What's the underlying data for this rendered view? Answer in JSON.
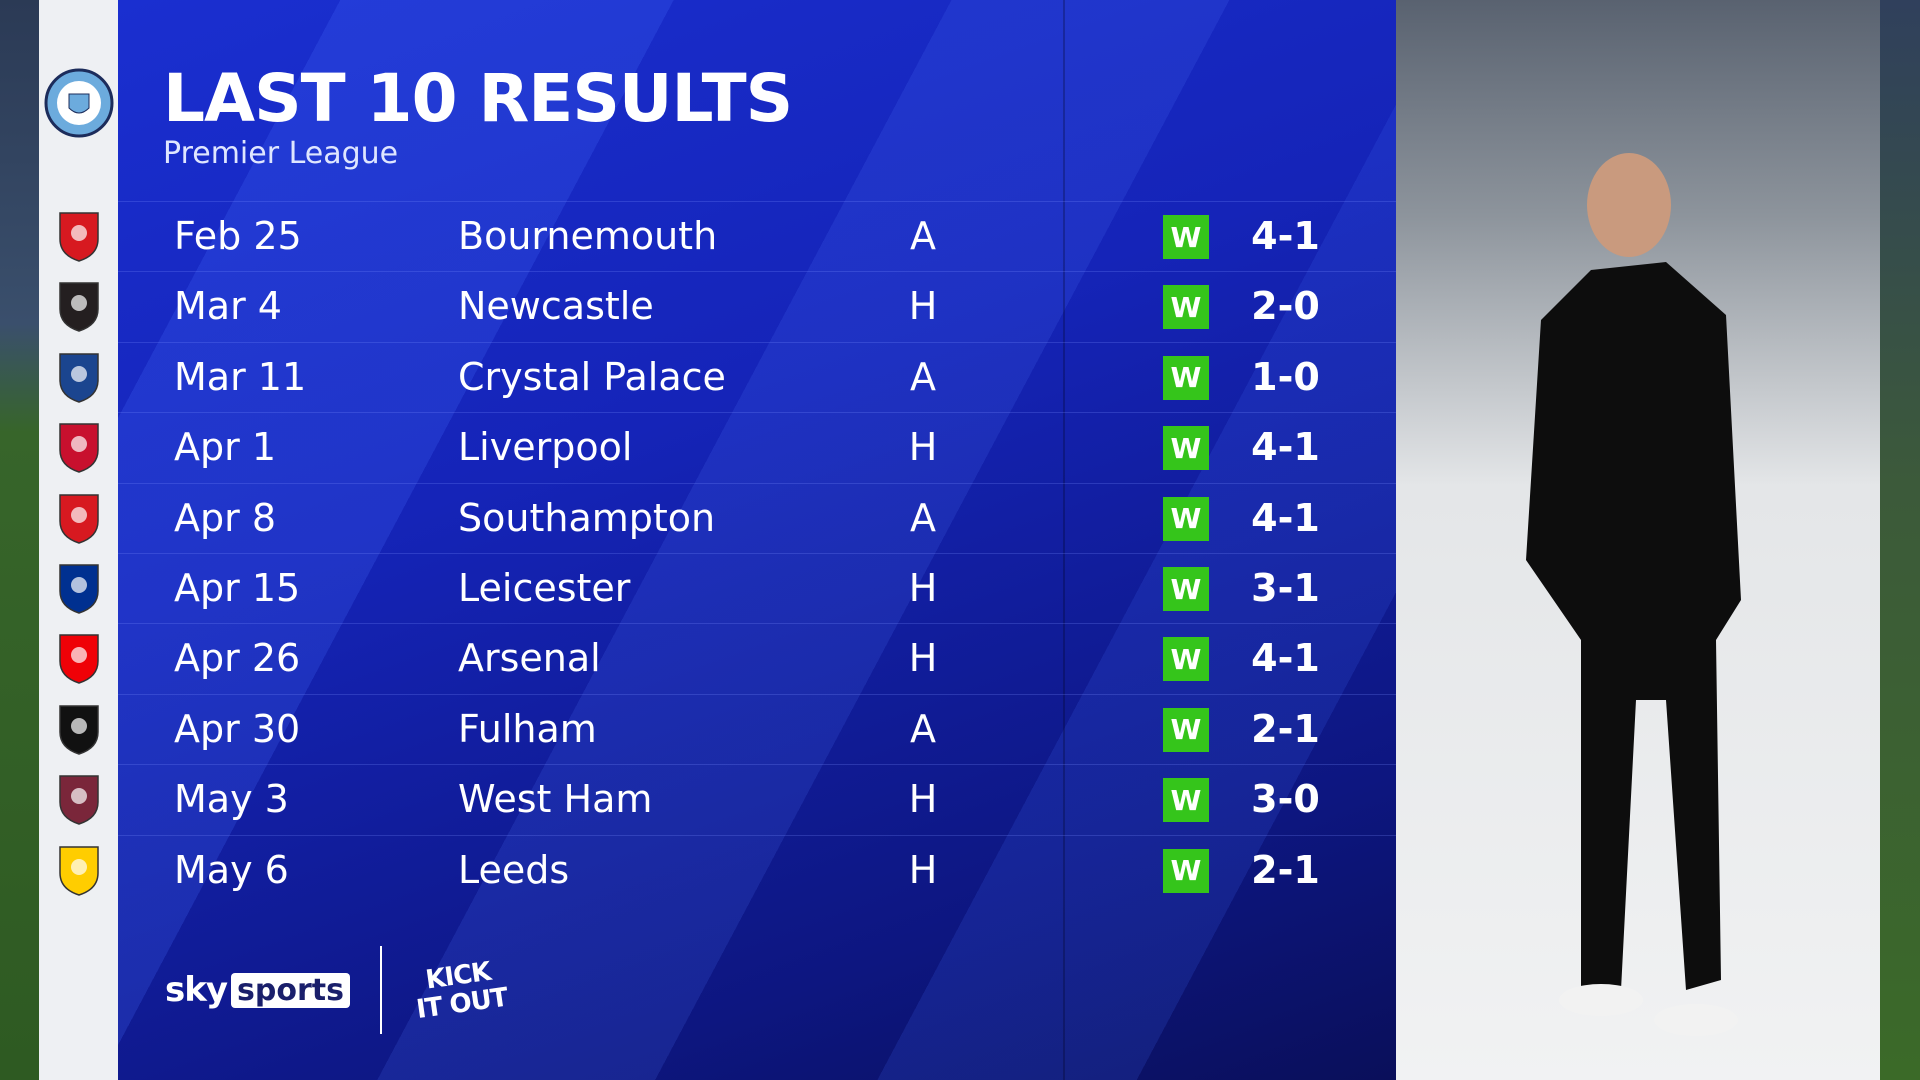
{
  "header": {
    "title": "LAST 10 RESULTS",
    "subtitle": "Premier League"
  },
  "results": [
    {
      "date": "Feb 25",
      "opponent": "Bournemouth",
      "venue": "A",
      "result": "W",
      "score": "4-1",
      "crest_color": "#d71920"
    },
    {
      "date": "Mar 4",
      "opponent": "Newcastle",
      "venue": "H",
      "result": "W",
      "score": "2-0",
      "crest_color": "#241f20"
    },
    {
      "date": "Mar 11",
      "opponent": "Crystal Palace",
      "venue": "A",
      "result": "W",
      "score": "1-0",
      "crest_color": "#1b458f"
    },
    {
      "date": "Apr 1",
      "opponent": "Liverpool",
      "venue": "H",
      "result": "W",
      "score": "4-1",
      "crest_color": "#c8102e"
    },
    {
      "date": "Apr 8",
      "opponent": "Southampton",
      "venue": "A",
      "result": "W",
      "score": "4-1",
      "crest_color": "#d71920"
    },
    {
      "date": "Apr 15",
      "opponent": "Leicester",
      "venue": "H",
      "result": "W",
      "score": "3-1",
      "crest_color": "#003090"
    },
    {
      "date": "Apr 26",
      "opponent": "Arsenal",
      "venue": "H",
      "result": "W",
      "score": "4-1",
      "crest_color": "#ef0107"
    },
    {
      "date": "Apr 30",
      "opponent": "Fulham",
      "venue": "A",
      "result": "W",
      "score": "2-1",
      "crest_color": "#111111"
    },
    {
      "date": "May 3",
      "opponent": "West Ham",
      "venue": "H",
      "result": "W",
      "score": "3-0",
      "crest_color": "#7a263a"
    },
    {
      "date": "May 6",
      "opponent": "Leeds",
      "venue": "H",
      "result": "W",
      "score": "2-1",
      "crest_color": "#ffcd00"
    }
  ],
  "colors": {
    "win": "#35c51b",
    "panel": "#1524b8",
    "club_crest": "#6cabdd"
  },
  "branding": {
    "sky": "sky",
    "sports": "sports",
    "kick_it_out": "KICK IT OUT"
  }
}
